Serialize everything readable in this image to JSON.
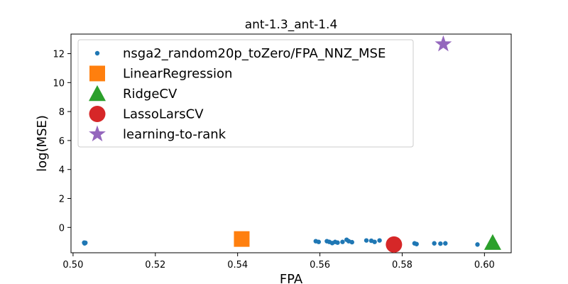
{
  "chart_data": {
    "type": "scatter",
    "title": "ant-1.3_ant-1.4",
    "xlabel": "FPA",
    "ylabel": "log(MSE)",
    "xlim": [
      0.4995,
      0.6065
    ],
    "ylim": [
      -1.75,
      13.35
    ],
    "xticks": [
      0.5,
      0.52,
      0.54,
      0.56,
      0.58,
      0.6
    ],
    "xtick_labels": [
      "0.50",
      "0.52",
      "0.54",
      "0.56",
      "0.58",
      "0.60"
    ],
    "yticks": [
      0,
      2,
      4,
      6,
      8,
      10,
      12
    ],
    "ytick_labels": [
      "0",
      "2",
      "4",
      "6",
      "8",
      "10",
      "12"
    ],
    "grid": false,
    "legend_position": "top-left",
    "series": [
      {
        "name": "nsga2_random20p_toZero/FPA_NNZ_MSE",
        "marker": "dot",
        "color": "#1f77b4",
        "points": [
          [
            0.5027,
            -1.05
          ],
          [
            0.5028,
            -1.1
          ],
          [
            0.5029,
            -1.08
          ],
          [
            0.503,
            -1.06
          ],
          [
            0.559,
            -0.95
          ],
          [
            0.5597,
            -1.0
          ],
          [
            0.5617,
            -0.95
          ],
          [
            0.5623,
            -1.0
          ],
          [
            0.563,
            -1.08
          ],
          [
            0.5637,
            -1.0
          ],
          [
            0.5643,
            -1.05
          ],
          [
            0.5655,
            -1.0
          ],
          [
            0.5665,
            -0.85
          ],
          [
            0.567,
            -0.95
          ],
          [
            0.5678,
            -1.02
          ],
          [
            0.5713,
            -0.9
          ],
          [
            0.5725,
            -0.92
          ],
          [
            0.5733,
            -1.0
          ],
          [
            0.5745,
            -0.9
          ],
          [
            0.583,
            -1.1
          ],
          [
            0.5835,
            -1.15
          ],
          [
            0.5878,
            -1.1
          ],
          [
            0.5893,
            -1.12
          ],
          [
            0.5905,
            -1.1
          ],
          [
            0.5983,
            -1.18
          ]
        ]
      },
      {
        "name": "LinearRegression",
        "marker": "square",
        "color": "#ff7f0e",
        "points": [
          [
            0.541,
            -0.8
          ]
        ]
      },
      {
        "name": "RidgeCV",
        "marker": "triangle",
        "color": "#2ca02c",
        "points": [
          [
            0.602,
            -1.05
          ]
        ]
      },
      {
        "name": "LassoLarsCV",
        "marker": "circle",
        "color": "#d62728",
        "points": [
          [
            0.578,
            -1.18
          ]
        ]
      },
      {
        "name": "learning-to-rank",
        "marker": "star",
        "color": "#9467bd",
        "points": [
          [
            0.59,
            12.65
          ]
        ]
      }
    ]
  }
}
